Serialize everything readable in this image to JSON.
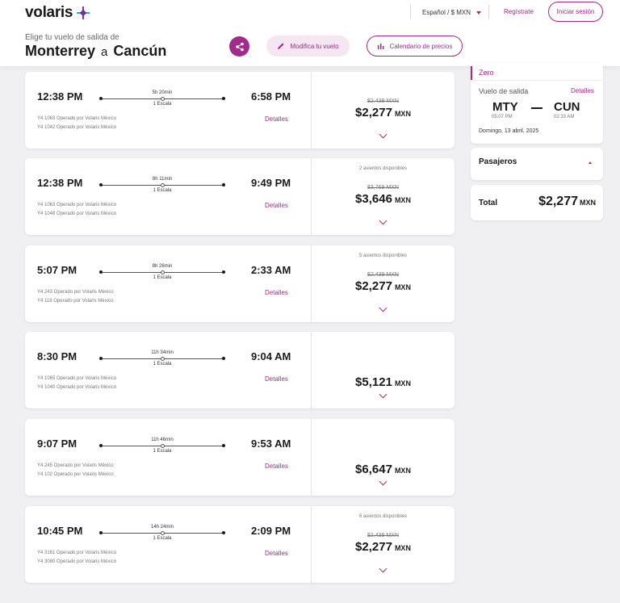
{
  "header": {
    "logo": "volaris",
    "language": "Español / $ MXN",
    "register": "Regístrate",
    "login": "Iniciar sesión",
    "subtitle": "Elige tu vuelo de salida de",
    "origin": "Monterrey",
    "connector": "a",
    "destination": "Cancún",
    "modify_label": "Modifica tu vuelo",
    "calendar_label": "Calendario de precios"
  },
  "flights": [
    {
      "dep": "12:38 PM",
      "arr": "6:58 PM",
      "duration": "5h 20min",
      "stops": "1 Escala",
      "op1": "Y4 1063 Operado por Volaris México",
      "op2": "Y4 1042 Operado por Volaris México",
      "details": "Detalles",
      "seats": "",
      "old_price": "$2,439 MXN",
      "price": "$2,277",
      "currency": "MXN"
    },
    {
      "dep": "12:38 PM",
      "arr": "9:49 PM",
      "duration": "8h 11min",
      "stops": "1 Escala",
      "op1": "Y4 1063 Operado por Volaris México",
      "op2": "Y4 1048 Operado por Volaris México",
      "details": "Detalles",
      "seats": "2 asientos disponibles",
      "old_price": "$3,769 MXN",
      "price": "$3,646",
      "currency": "MXN"
    },
    {
      "dep": "5:07 PM",
      "arr": "2:33 AM",
      "duration": "8h 26min",
      "stops": "1 Escala",
      "op1": "Y4 243 Operado por Volaris México",
      "op2": "Y4 118 Operado por Volaris México",
      "details": "Detalles",
      "seats": "5 asientos disponibles",
      "old_price": "$2,439 MXN",
      "price": "$2,277",
      "currency": "MXN"
    },
    {
      "dep": "8:30 PM",
      "arr": "9:04 AM",
      "duration": "11h 34min",
      "stops": "1 Escala",
      "op1": "Y4 1065 Operado por Volaris México",
      "op2": "Y4 1040 Operado por Volaris México",
      "details": "Detalles",
      "seats": "",
      "old_price": "",
      "price": "$5,121",
      "currency": "MXN"
    },
    {
      "dep": "9:07 PM",
      "arr": "9:53 AM",
      "duration": "11h 46min",
      "stops": "1 Escala",
      "op1": "Y4 245 Operado por Volaris México",
      "op2": "Y4 102 Operado por Volaris México",
      "details": "Detalles",
      "seats": "",
      "old_price": "",
      "price": "$6,647",
      "currency": "MXN"
    },
    {
      "dep": "10:45 PM",
      "arr": "2:09 PM",
      "duration": "14h 24min",
      "stops": "1 Escala",
      "op1": "Y4 3161 Operado por Volaris México",
      "op2": "Y4 3080 Operado por Volaris México",
      "details": "Detalles",
      "seats": "6 asientos disponibles",
      "old_price": "$2,439 MXN",
      "price": "$2,277",
      "currency": "MXN"
    }
  ],
  "summary": {
    "fare": "Zero",
    "segment_label": "Vuelo de salida",
    "details": "Detalles",
    "origin_code": "MTY",
    "dest_code": "CUN",
    "dep_time": "05:07 PM",
    "arr_time": "02:33 AM",
    "date": "Domingo, 13 abril, 2025",
    "passengers": "Pasajeros",
    "total_label": "Total",
    "total_price": "$2,277",
    "total_currency": "MXN"
  }
}
